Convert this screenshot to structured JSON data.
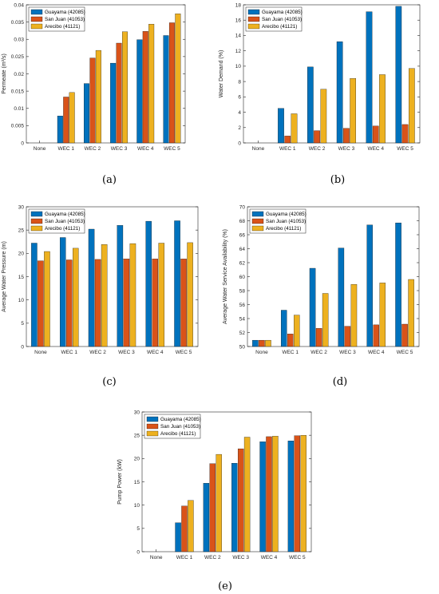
{
  "colors": {
    "series": [
      "#0072BD",
      "#D95319",
      "#EDB120"
    ]
  },
  "legend_labels": [
    "Guayama (42085)",
    "San Juan (41053)",
    "Arecibo (41121)"
  ],
  "chart_data": [
    {
      "type": "bar",
      "caption": "(a)",
      "ylabel": "Permeate (m³/s)",
      "categories": [
        "None",
        "WEC 1",
        "WEC 2",
        "WEC 3",
        "WEC 4",
        "WEC 5"
      ],
      "ylim": [
        0,
        0.04
      ],
      "yticks": [
        0,
        0.005,
        0.01,
        0.015,
        0.02,
        0.025,
        0.03,
        0.035,
        0.04
      ],
      "ytick_labels": [
        "0",
        "0.005",
        "0.01",
        "0.015",
        "0.02",
        "0.025",
        "0.03",
        "0.035",
        "0.04"
      ],
      "legend_position": "top-left",
      "series": [
        {
          "name": "Guayama (42085)",
          "values": [
            0,
            0.0078,
            0.0172,
            0.0231,
            0.0299,
            0.0311
          ]
        },
        {
          "name": "San Juan (41053)",
          "values": [
            0,
            0.0133,
            0.0246,
            0.0289,
            0.0323,
            0.0348
          ]
        },
        {
          "name": "Arecibo (41121)",
          "values": [
            0,
            0.0146,
            0.0268,
            0.0322,
            0.0344,
            0.0374
          ]
        }
      ]
    },
    {
      "type": "bar",
      "caption": "(b)",
      "ylabel": "Water Demand (%)",
      "categories": [
        "None",
        "WEC 1",
        "WEC 2",
        "WEC 3",
        "WEC 4",
        "WEC 5"
      ],
      "ylim": [
        0,
        18
      ],
      "yticks": [
        0,
        2,
        4,
        6,
        8,
        10,
        12,
        14,
        16,
        18
      ],
      "ytick_labels": [
        "0",
        "2",
        "4",
        "6",
        "8",
        "10",
        "12",
        "14",
        "16",
        "18"
      ],
      "legend_position": "top-left",
      "series": [
        {
          "name": "Guayama (42085)",
          "values": [
            0,
            4.5,
            9.9,
            13.2,
            17.1,
            17.8
          ]
        },
        {
          "name": "San Juan (41053)",
          "values": [
            0,
            0.9,
            1.6,
            1.9,
            2.2,
            2.4
          ]
        },
        {
          "name": "Arecibo (41121)",
          "values": [
            0,
            3.8,
            7.0,
            8.4,
            8.9,
            9.7
          ]
        }
      ]
    },
    {
      "type": "bar",
      "caption": "(c)",
      "ylabel": "Average Water Pressure (m)",
      "categories": [
        "None",
        "WEC 1",
        "WEC 2",
        "WEC 3",
        "WEC 4",
        "WEC 5"
      ],
      "ylim": [
        0,
        30
      ],
      "yticks": [
        0,
        5,
        10,
        15,
        20,
        25,
        30
      ],
      "ytick_labels": [
        "0",
        "5",
        "10",
        "15",
        "20",
        "25",
        "30"
      ],
      "legend_position": "top-left",
      "series": [
        {
          "name": "Guayama (42085)",
          "values": [
            22.2,
            23.4,
            25.2,
            26.0,
            26.9,
            27.0
          ]
        },
        {
          "name": "San Juan (41053)",
          "values": [
            18.4,
            18.6,
            18.7,
            18.8,
            18.8,
            18.8
          ]
        },
        {
          "name": "Arecibo (41121)",
          "values": [
            20.4,
            21.1,
            21.9,
            22.1,
            22.2,
            22.3
          ]
        }
      ]
    },
    {
      "type": "bar",
      "caption": "(d)",
      "ylabel": "Average Water Service Availability (%)",
      "categories": [
        "None",
        "WEC 1",
        "WEC 2",
        "WEC 3",
        "WEC 4",
        "WEC 5"
      ],
      "ylim": [
        50,
        70
      ],
      "yticks": [
        50,
        52,
        54,
        56,
        58,
        60,
        62,
        64,
        66,
        68,
        70
      ],
      "ytick_labels": [
        "50",
        "52",
        "54",
        "56",
        "58",
        "60",
        "62",
        "64",
        "66",
        "68",
        "70"
      ],
      "legend_position": "top-left",
      "series": [
        {
          "name": "Guayama (42085)",
          "values": [
            50.9,
            55.2,
            61.2,
            64.1,
            67.4,
            67.7
          ]
        },
        {
          "name": "San Juan (41053)",
          "values": [
            50.9,
            51.8,
            52.6,
            52.9,
            53.1,
            53.2
          ]
        },
        {
          "name": "Arecibo (41121)",
          "values": [
            50.9,
            54.5,
            57.6,
            58.9,
            59.1,
            59.6
          ]
        }
      ]
    },
    {
      "type": "bar",
      "caption": "(e)",
      "ylabel": "Pump Power (kW)",
      "categories": [
        "None",
        "WEC 1",
        "WEC 2",
        "WEC 3",
        "WEC 4",
        "WEC 5"
      ],
      "ylim": [
        0,
        30
      ],
      "yticks": [
        0,
        5,
        10,
        15,
        20,
        25,
        30
      ],
      "ytick_labels": [
        "0",
        "5",
        "10",
        "15",
        "20",
        "25",
        "30"
      ],
      "legend_position": "top-left",
      "series": [
        {
          "name": "Guayama (42085)",
          "values": [
            0,
            6.2,
            14.7,
            19.0,
            23.6,
            23.8
          ]
        },
        {
          "name": "San Juan (41053)",
          "values": [
            0,
            9.8,
            18.9,
            22.1,
            24.7,
            24.9
          ]
        },
        {
          "name": "Arecibo (41121)",
          "values": [
            0,
            11.0,
            20.9,
            24.6,
            24.8,
            25.0
          ]
        }
      ]
    }
  ]
}
